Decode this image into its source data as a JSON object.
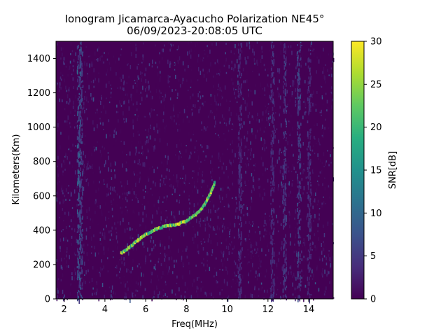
{
  "chart_data": {
    "type": "heatmap",
    "title_line1": "Ionogram Jicamarca-Ayacucho Polarization NE45°",
    "title_line2": "06/09/2023-20:08:05 UTC",
    "xlabel": "Freq(MHz)",
    "ylabel": "Kilometers(Km)",
    "xlim": [
      1.6,
      15.2
    ],
    "ylim": [
      0,
      1500
    ],
    "xticks": [
      2,
      4,
      6,
      8,
      10,
      12,
      14
    ],
    "yticks": [
      0,
      200,
      400,
      600,
      800,
      1000,
      1200,
      1400
    ],
    "colorbar": {
      "label": "SNR[dB]",
      "colormap": "viridis",
      "range": [
        0,
        30
      ],
      "ticks": [
        0,
        5,
        10,
        15,
        20,
        25,
        30
      ]
    },
    "background_color": "#440154",
    "trace": {
      "description_points": [
        {
          "x": 4.8,
          "y": 265
        },
        {
          "x": 5.2,
          "y": 300
        },
        {
          "x": 5.6,
          "y": 340
        },
        {
          "x": 6.0,
          "y": 375
        },
        {
          "x": 6.5,
          "y": 405
        },
        {
          "x": 7.0,
          "y": 425
        },
        {
          "x": 7.5,
          "y": 430
        },
        {
          "x": 8.0,
          "y": 455
        },
        {
          "x": 8.5,
          "y": 495
        },
        {
          "x": 8.9,
          "y": 550
        },
        {
          "x": 9.2,
          "y": 620
        },
        {
          "x": 9.4,
          "y": 680
        }
      ],
      "peak_snr_db": 30
    },
    "vertical_bands": [
      {
        "x": 2.7,
        "snr_db": 8
      },
      {
        "x": 2.8,
        "snr_db": 6
      },
      {
        "x": 10.6,
        "snr_db": 4
      },
      {
        "x": 12.2,
        "snr_db": 4
      },
      {
        "x": 12.8,
        "snr_db": 5
      },
      {
        "x": 13.5,
        "snr_db": 6
      },
      {
        "x": 14.0,
        "snr_db": 4
      }
    ]
  }
}
